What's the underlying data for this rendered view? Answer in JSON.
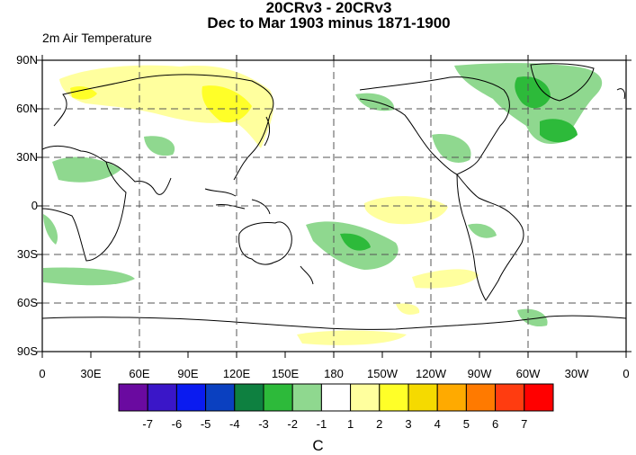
{
  "title_line1": "20CRv3 - 20CRv3",
  "title_line2": "Dec to Mar 1903 minus 1871-1900",
  "variable": "2m Air Temperature",
  "units": "C",
  "lat_ticks": [
    "90N",
    "60N",
    "30N",
    "0",
    "30S",
    "60S",
    "90S"
  ],
  "lon_ticks": [
    "0",
    "30E",
    "60E",
    "90E",
    "120E",
    "150E",
    "180",
    "150W",
    "120W",
    "90W",
    "60W",
    "30W",
    "0"
  ],
  "colorbar": {
    "colors": [
      "#6a0aa0",
      "#3a16c8",
      "#0a1bf0",
      "#0a40c0",
      "#0e8040",
      "#2dba3a",
      "#8fd88f",
      "#ffffff",
      "#ffff9e",
      "#ffff28",
      "#f5da00",
      "#ffaa00",
      "#ff7a00",
      "#ff3c10",
      "#ff0000"
    ],
    "labels": [
      "-7",
      "-6",
      "-5",
      "-4",
      "-3",
      "-2",
      "-1",
      "1",
      "2",
      "3",
      "4",
      "5",
      "6",
      "7"
    ]
  },
  "map": {
    "projection": "cylindrical-equidistant",
    "lon_range": [
      0,
      360
    ],
    "lat_range": [
      -90,
      90
    ],
    "grid": "dashed, every 30 degrees"
  }
}
